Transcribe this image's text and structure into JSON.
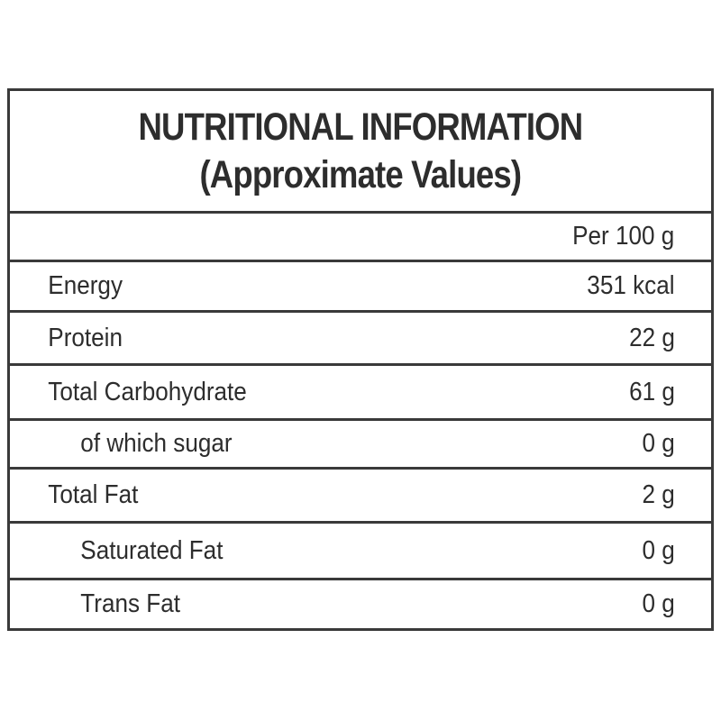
{
  "title": {
    "line1": "NUTRITIONAL INFORMATION",
    "line2": "(Approximate Values)"
  },
  "table": {
    "column_header": "Per 100 g",
    "rows": [
      {
        "label": "Energy",
        "value": "351 kcal",
        "indent": false
      },
      {
        "label": "Protein",
        "value": "22 g",
        "indent": false
      },
      {
        "label": "Total Carbohydrate",
        "value": "61 g",
        "indent": false
      },
      {
        "label": "of which sugar",
        "value": "0 g",
        "indent": true
      },
      {
        "label": "Total Fat",
        "value": "2 g",
        "indent": false
      },
      {
        "label": "Saturated Fat",
        "value": "0 g",
        "indent": true
      },
      {
        "label": "Trans Fat",
        "value": "0 g",
        "indent": true
      }
    ]
  },
  "colors": {
    "background": "#ffffff",
    "text": "#2d2d2d",
    "border": "#3a3a3a"
  }
}
